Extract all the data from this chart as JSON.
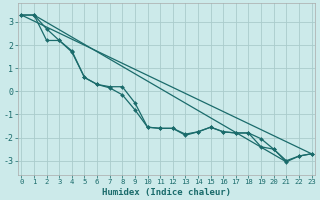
{
  "xlabel": "Humidex (Indice chaleur)",
  "bg_color": "#cceaea",
  "grid_color": "#aacccc",
  "line_color": "#1a6b6b",
  "x_ticks": [
    0,
    1,
    2,
    3,
    4,
    5,
    6,
    7,
    8,
    9,
    10,
    11,
    12,
    13,
    14,
    15,
    16,
    17,
    18,
    19,
    20,
    21,
    22,
    23
  ],
  "series_marked1": {
    "x": [
      0,
      1,
      2,
      3,
      4,
      5,
      6,
      7,
      8,
      9,
      10,
      11,
      12,
      13,
      14,
      15,
      16,
      17,
      18,
      19,
      20,
      21,
      22,
      23
    ],
    "y": [
      3.3,
      3.3,
      2.7,
      2.2,
      1.7,
      0.6,
      0.3,
      0.15,
      -0.15,
      -0.8,
      -1.55,
      -1.6,
      -1.6,
      -1.85,
      -1.75,
      -1.55,
      -1.75,
      -1.8,
      -1.8,
      -2.05,
      -2.5,
      -3.0,
      -2.8,
      -2.7
    ]
  },
  "series_marked2": {
    "x": [
      0,
      1,
      2,
      3,
      4,
      5,
      6,
      7,
      8,
      9,
      10,
      11,
      12,
      13,
      14,
      15,
      16,
      17,
      18,
      19,
      20,
      21,
      22,
      23
    ],
    "y": [
      3.3,
      3.3,
      2.2,
      2.2,
      1.75,
      0.6,
      0.3,
      0.2,
      0.2,
      -0.5,
      -1.55,
      -1.6,
      -1.6,
      -1.9,
      -1.75,
      -1.55,
      -1.75,
      -1.8,
      -1.8,
      -2.4,
      -2.5,
      -3.05,
      -2.8,
      -2.7
    ]
  },
  "straight1": {
    "x": [
      0,
      23
    ],
    "y": [
      3.3,
      -2.7
    ]
  },
  "straight2": {
    "x": [
      1,
      21
    ],
    "y": [
      3.3,
      -3.05
    ]
  },
  "ylim": [
    -3.6,
    3.8
  ],
  "xlim": [
    -0.3,
    23.3
  ]
}
